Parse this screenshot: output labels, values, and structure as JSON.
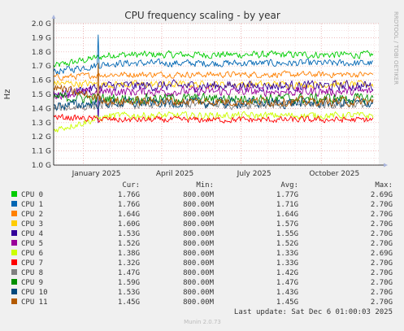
{
  "chart_data": {
    "type": "line",
    "title": "CPU frequency scaling - by year",
    "ylabel": "Hz",
    "side_label": "RRDTOOL / TOBI OETIKER",
    "y_ticks": [
      "1.0 G",
      "1.1 G",
      "1.2 G",
      "1.3 G",
      "1.4 G",
      "1.5 G",
      "1.6 G",
      "1.7 G",
      "1.8 G",
      "1.9 G",
      "2.0 G"
    ],
    "ylim": [
      1.0,
      2.0
    ],
    "x_ticks": [
      "January 2025",
      "April 2025",
      "July 2025",
      "October 2025"
    ],
    "xlim": [
      "2024-11-28",
      "2025-12-06"
    ],
    "x_tick_dates": [
      "2025-01-01",
      "2025-04-01",
      "2025-07-01",
      "2025-10-01"
    ],
    "grid": true,
    "legend_headers": {
      "cur": "Cur:",
      "min": "Min:",
      "avg": "Avg:",
      "max": "Max:"
    },
    "series": [
      {
        "name": "CPU 0",
        "color": "#00cc00",
        "cur": "1.76G",
        "min": "800.00M",
        "avg": "1.77G",
        "max": "2.69G",
        "level": [
          1.7,
          1.78
        ],
        "noise": 0.035
      },
      {
        "name": "CPU 1",
        "color": "#0066b3",
        "cur": "1.76G",
        "min": "800.00M",
        "avg": "1.71G",
        "max": "2.70G",
        "level": [
          1.66,
          1.72
        ],
        "noise": 0.035
      },
      {
        "name": "CPU 2",
        "color": "#ff8000",
        "cur": "1.64G",
        "min": "800.00M",
        "avg": "1.64G",
        "max": "2.70G",
        "level": [
          1.62,
          1.64
        ],
        "noise": 0.03
      },
      {
        "name": "CPU 3",
        "color": "#ffcc00",
        "cur": "1.60G",
        "min": "800.00M",
        "avg": "1.57G",
        "max": "2.70G",
        "level": [
          1.58,
          1.57
        ],
        "noise": 0.035
      },
      {
        "name": "CPU 4",
        "color": "#330099",
        "cur": "1.53G",
        "min": "800.00M",
        "avg": "1.55G",
        "max": "2.70G",
        "level": [
          1.5,
          1.56
        ],
        "noise": 0.05
      },
      {
        "name": "CPU 5",
        "color": "#990099",
        "cur": "1.52G",
        "min": "800.00M",
        "avg": "1.52G",
        "max": "2.70G",
        "level": [
          1.5,
          1.52
        ],
        "noise": 0.045
      },
      {
        "name": "CPU 6",
        "color": "#ccff00",
        "cur": "1.38G",
        "min": "800.00M",
        "avg": "1.33G",
        "max": "2.69G",
        "level": [
          1.25,
          1.35
        ],
        "noise": 0.035
      },
      {
        "name": "CPU 7",
        "color": "#ff0000",
        "cur": "1.32G",
        "min": "800.00M",
        "avg": "1.33G",
        "max": "2.70G",
        "level": [
          1.34,
          1.32
        ],
        "noise": 0.03
      },
      {
        "name": "CPU 8",
        "color": "#808080",
        "cur": "1.47G",
        "min": "800.00M",
        "avg": "1.42G",
        "max": "2.70G",
        "level": [
          1.4,
          1.43
        ],
        "noise": 0.045
      },
      {
        "name": "CPU 9",
        "color": "#008f00",
        "cur": "1.59G",
        "min": "800.00M",
        "avg": "1.47G",
        "max": "2.70G",
        "level": [
          1.48,
          1.47
        ],
        "noise": 0.05
      },
      {
        "name": "CPU 10",
        "color": "#00487d",
        "cur": "1.53G",
        "min": "800.00M",
        "avg": "1.43G",
        "max": "2.70G",
        "level": [
          1.42,
          1.44
        ],
        "noise": 0.05
      },
      {
        "name": "CPU 11",
        "color": "#b35a00",
        "cur": "1.45G",
        "min": "800.00M",
        "avg": "1.45G",
        "max": "2.70G",
        "level": [
          1.55,
          1.45
        ],
        "noise": 0.045
      }
    ]
  },
  "footer": {
    "last_update": "Last update: Sat Dec  6 01:00:03 2025",
    "version": "Munin 2.0.73"
  }
}
